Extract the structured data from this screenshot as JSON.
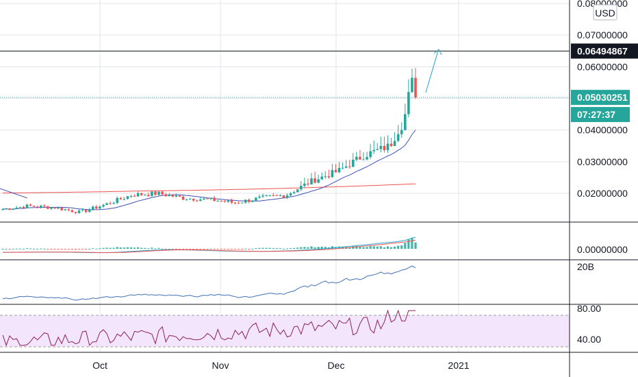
{
  "chart_data": {
    "type": "candlestick",
    "currency": "USD",
    "x_labels": [
      "Oct",
      "Nov",
      "Dec",
      "2021"
    ],
    "price_ticks": [
      "0.08000000",
      "0.07000000",
      "0.06000000",
      "0.04000000",
      "0.03000000",
      "0.02000000"
    ],
    "price_range": [
      0.0095,
      0.0805
    ],
    "resistance_level": {
      "label": "0.06494867",
      "value": 0.06494867
    },
    "last_price": {
      "label": "0.05030251",
      "value": 0.05030251,
      "countdown": "07:27:37"
    },
    "candles_weekly_summary": [
      {
        "date": "2020-09-01",
        "close": 0.015
      },
      {
        "date": "2020-09-07",
        "close": 0.016
      },
      {
        "date": "2020-09-14",
        "close": 0.0155
      },
      {
        "date": "2020-09-21",
        "close": 0.014
      },
      {
        "date": "2020-09-28",
        "close": 0.0165
      },
      {
        "date": "2020-10-05",
        "close": 0.0195
      },
      {
        "date": "2020-10-12",
        "close": 0.02
      },
      {
        "date": "2020-10-19",
        "close": 0.0185
      },
      {
        "date": "2020-10-26",
        "close": 0.018
      },
      {
        "date": "2020-11-02",
        "close": 0.017
      },
      {
        "date": "2020-11-09",
        "close": 0.0185
      },
      {
        "date": "2020-11-16",
        "close": 0.0195
      },
      {
        "date": "2020-11-23",
        "close": 0.024
      },
      {
        "date": "2020-11-30",
        "close": 0.027
      },
      {
        "date": "2020-12-07",
        "close": 0.032
      },
      {
        "date": "2020-12-14",
        "close": 0.035
      },
      {
        "date": "2020-12-21",
        "close": 0.0503
      }
    ],
    "macd": {
      "zero_label": "0.00000000"
    },
    "volume": {
      "label": "20B"
    },
    "rsi": {
      "ticks": [
        "80.00",
        "40.00"
      ],
      "upper_band": 70,
      "lower_band": 30
    }
  }
}
